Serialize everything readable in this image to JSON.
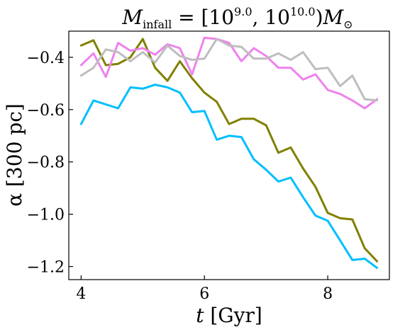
{
  "chart_data": {
    "type": "line",
    "title": "M_infall = [10^9.0, 10^10.0) M_☉",
    "title_parts": {
      "symbol": "M",
      "subscript": "infall",
      "equals": " = [10",
      "exp1": "9.0",
      "sep": ", 10",
      "exp2": "10.0",
      "close": ")",
      "unit_symbol": "M",
      "unit_subscript": "⊙"
    },
    "xlabel": "t [Gyr]",
    "xlabel_parts": {
      "var": "t",
      "unit": " [Gyr]"
    },
    "ylabel": "α [300 pc]",
    "xlim": [
      3.8,
      9.0
    ],
    "ylim": [
      -1.25,
      -0.3
    ],
    "xticks": [
      4,
      6,
      8
    ],
    "yticks": [
      -0.4,
      -0.6,
      -0.8,
      -1.0,
      -1.2
    ],
    "xtick_labels": [
      "4",
      "6",
      "8"
    ],
    "ytick_labels": [
      "−0.4",
      "−0.6",
      "−0.8",
      "−1.0",
      "−1.2"
    ],
    "grid": false,
    "legend": "none",
    "x": [
      4.0,
      4.2,
      4.4,
      4.6,
      4.8,
      5.0,
      5.2,
      5.4,
      5.6,
      5.8,
      6.0,
      6.2,
      6.4,
      6.6,
      6.8,
      7.0,
      7.2,
      7.4,
      7.6,
      7.8,
      8.0,
      8.2,
      8.4,
      8.6,
      8.8
    ],
    "series": [
      {
        "color": "#00bfff",
        "values": [
          -0.655,
          -0.565,
          -0.58,
          -0.595,
          -0.515,
          -0.52,
          -0.505,
          -0.515,
          -0.535,
          -0.61,
          -0.605,
          -0.715,
          -0.7,
          -0.705,
          -0.79,
          -0.83,
          -0.875,
          -0.86,
          -0.935,
          -1.005,
          -1.025,
          -1.1,
          -1.175,
          -1.17,
          -1.205
        ]
      },
      {
        "color": "#808000",
        "values": [
          -0.355,
          -0.335,
          -0.43,
          -0.425,
          -0.4,
          -0.33,
          -0.44,
          -0.49,
          -0.415,
          -0.48,
          -0.535,
          -0.57,
          -0.655,
          -0.635,
          -0.635,
          -0.66,
          -0.765,
          -0.745,
          -0.825,
          -0.895,
          -0.995,
          -1.015,
          -1.02,
          -1.13,
          -1.18
        ]
      },
      {
        "color": "#ee82ee",
        "values": [
          -0.43,
          -0.385,
          -0.475,
          -0.345,
          -0.375,
          -0.365,
          -0.39,
          -0.35,
          -0.365,
          -0.465,
          -0.325,
          -0.33,
          -0.345,
          -0.415,
          -0.365,
          -0.395,
          -0.44,
          -0.44,
          -0.485,
          -0.465,
          -0.525,
          -0.54,
          -0.565,
          -0.595,
          -0.56
        ]
      },
      {
        "color": "#bebebe",
        "values": [
          -0.47,
          -0.44,
          -0.37,
          -0.38,
          -0.415,
          -0.38,
          -0.42,
          -0.355,
          -0.395,
          -0.41,
          -0.405,
          -0.33,
          -0.355,
          -0.36,
          -0.405,
          -0.405,
          -0.385,
          -0.41,
          -0.38,
          -0.445,
          -0.44,
          -0.51,
          -0.47,
          -0.56,
          -0.565
        ]
      }
    ]
  }
}
